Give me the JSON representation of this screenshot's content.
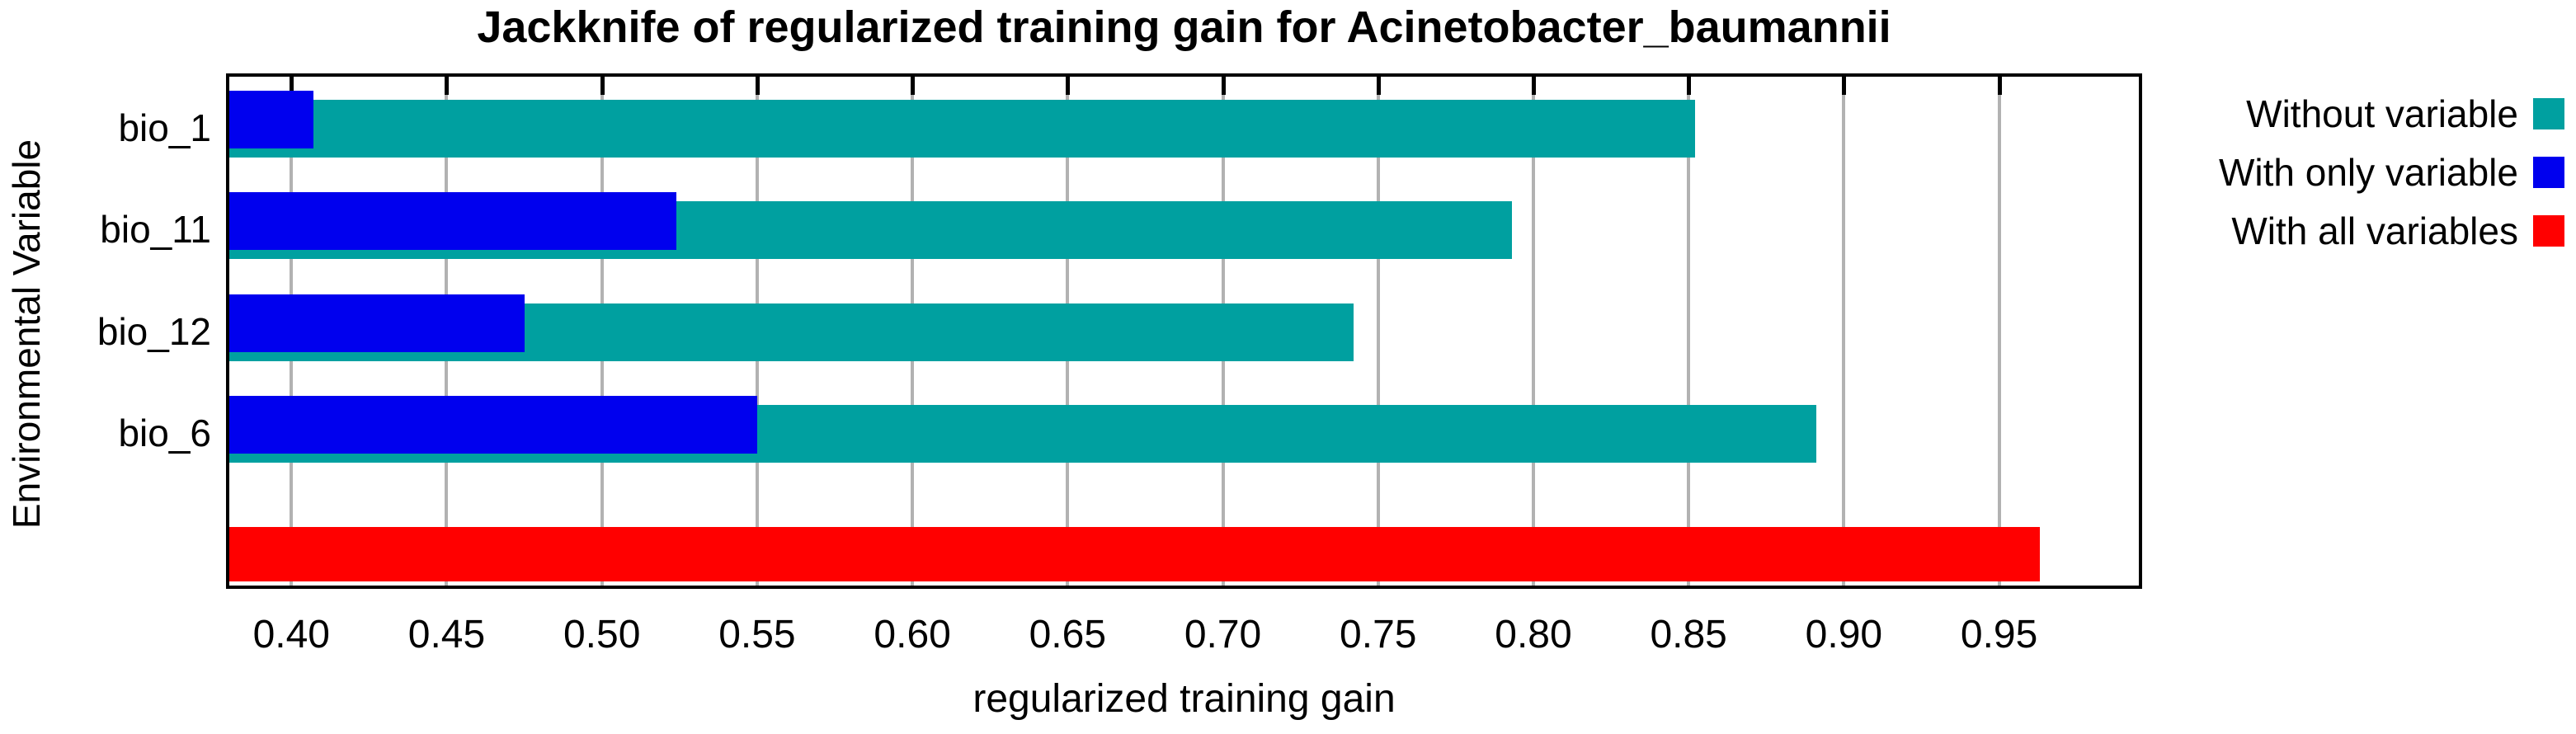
{
  "title": "Jackknife of regularized training gain for Acinetobacter_baumannii",
  "chart_data": {
    "type": "bar",
    "orientation": "horizontal",
    "title": "Jackknife of regularized training gain for Acinetobacter_baumannii",
    "xlabel": "regularized training gain",
    "ylabel": "Environmental Variable",
    "categories": [
      "bio_1",
      "bio_11",
      "bio_12",
      "bio_6"
    ],
    "series": [
      {
        "name": "Without variable",
        "color": "#00a0a0",
        "values": [
          0.852,
          0.793,
          0.742,
          0.891
        ]
      },
      {
        "name": "With only variable",
        "color": "#0000ee",
        "values": [
          0.407,
          0.524,
          0.475,
          0.55
        ]
      },
      {
        "name": "With all variables",
        "color": "#ff0000",
        "values": [
          0.963
        ]
      }
    ],
    "xlim": [
      0.38,
      0.995
    ],
    "xticks": [
      0.4,
      0.45,
      0.5,
      0.55,
      0.6,
      0.65,
      0.7,
      0.75,
      0.8,
      0.85,
      0.9,
      0.95
    ],
    "tick_format_decimals": 2,
    "grid": true,
    "gridline_color": "#b2b2b2",
    "legend_position": "right"
  }
}
